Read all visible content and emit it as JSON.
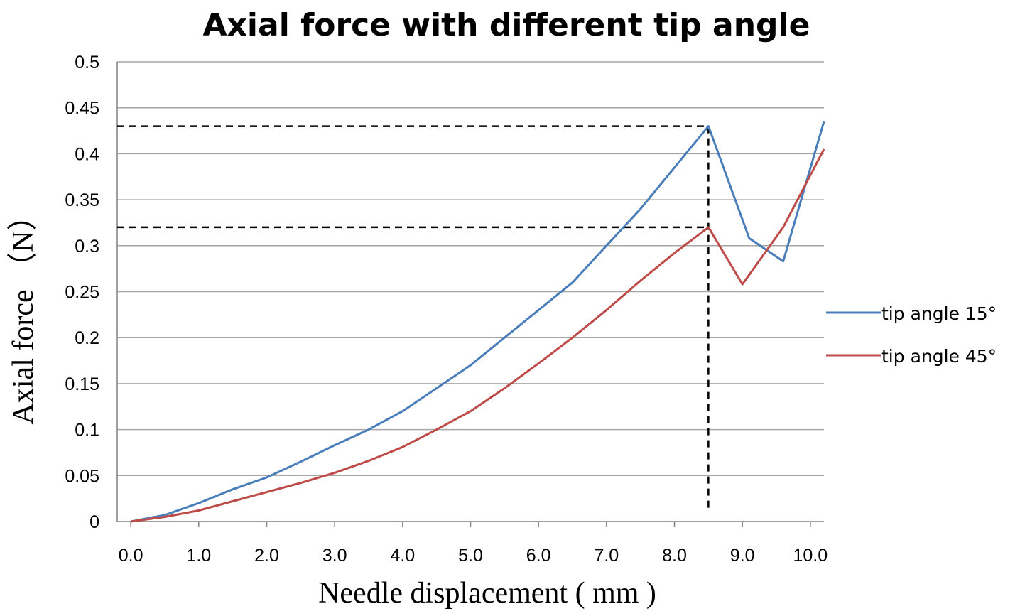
{
  "chart_data": {
    "type": "line",
    "title": "Axial force with different tip angle",
    "xlabel": "Needle displacement ( mm )",
    "ylabel": "Axial force （N）",
    "xlim": [
      -0.2,
      10.2
    ],
    "ylim": [
      0,
      0.5
    ],
    "x_ticks": [
      "0.0",
      "1.0",
      "2.0",
      "3.0",
      "4.0",
      "5.0",
      "6.0",
      "7.0",
      "8.0",
      "9.0",
      "10.0"
    ],
    "y_ticks": [
      "0",
      "0.05",
      "0.1",
      "0.15",
      "0.2",
      "0.25",
      "0.3",
      "0.35",
      "0.4",
      "0.45",
      "0.5"
    ],
    "grid": true,
    "legend_position": "right",
    "series": [
      {
        "name": "tip angle 15°",
        "color": "#4a7ebb",
        "x": [
          0.0,
          0.5,
          1.0,
          1.5,
          2.0,
          2.5,
          3.0,
          3.5,
          4.0,
          4.5,
          5.0,
          5.5,
          6.0,
          6.5,
          7.0,
          7.5,
          8.0,
          8.5,
          9.1,
          9.6,
          10.2
        ],
        "y": [
          0.0,
          0.007,
          0.02,
          0.035,
          0.048,
          0.065,
          0.083,
          0.1,
          0.12,
          0.145,
          0.17,
          0.2,
          0.23,
          0.26,
          0.3,
          0.34,
          0.385,
          0.43,
          0.308,
          0.283,
          0.435
        ]
      },
      {
        "name": "tip angle 45°",
        "color": "#be4b48",
        "x": [
          0.0,
          0.5,
          1.0,
          1.5,
          2.0,
          2.5,
          3.0,
          3.5,
          4.0,
          4.5,
          5.0,
          5.5,
          6.0,
          6.5,
          7.0,
          7.5,
          8.0,
          8.5,
          9.0,
          9.6,
          10.2
        ],
        "y": [
          0.0,
          0.005,
          0.012,
          0.022,
          0.032,
          0.042,
          0.053,
          0.066,
          0.081,
          0.1,
          0.12,
          0.145,
          0.172,
          0.2,
          0.23,
          0.262,
          0.292,
          0.32,
          0.258,
          0.32,
          0.405
        ]
      }
    ],
    "reference_lines": [
      {
        "axis": "y",
        "value": 0.43,
        "to_x": 8.5
      },
      {
        "axis": "y",
        "value": 0.32,
        "to_x": 8.5
      },
      {
        "axis": "x",
        "value": 8.5,
        "to_y": 0.43
      }
    ]
  }
}
